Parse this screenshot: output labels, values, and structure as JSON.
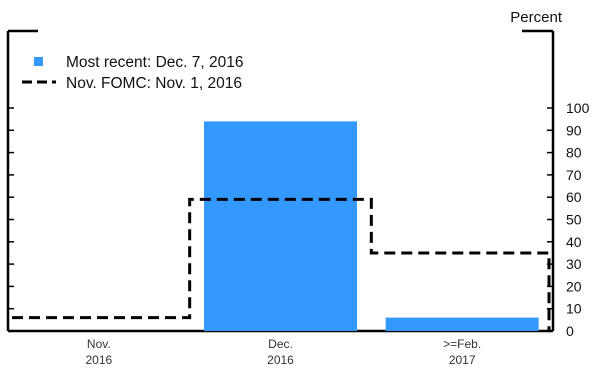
{
  "chart_data": {
    "type": "bar",
    "ylabel": "Percent",
    "ylim": [
      0,
      100
    ],
    "y_ticks": [
      "0",
      "10",
      "20",
      "30",
      "40",
      "50",
      "60",
      "70",
      "80",
      "90",
      "100"
    ],
    "categories": [
      [
        "Nov.",
        "2016"
      ],
      [
        "Dec.",
        "2016"
      ],
      [
        ">=Feb.",
        "2017"
      ]
    ],
    "series": [
      {
        "name": "Most recent: Dec. 7, 2016",
        "style": "bar",
        "color": "#3399ff",
        "values": [
          0,
          94,
          6
        ]
      },
      {
        "name": "Nov. FOMC: Nov. 1, 2016",
        "style": "dashed-step",
        "color": "#000000",
        "values": [
          6,
          59,
          35
        ]
      }
    ],
    "legend_position": "top-left",
    "grid": false
  }
}
